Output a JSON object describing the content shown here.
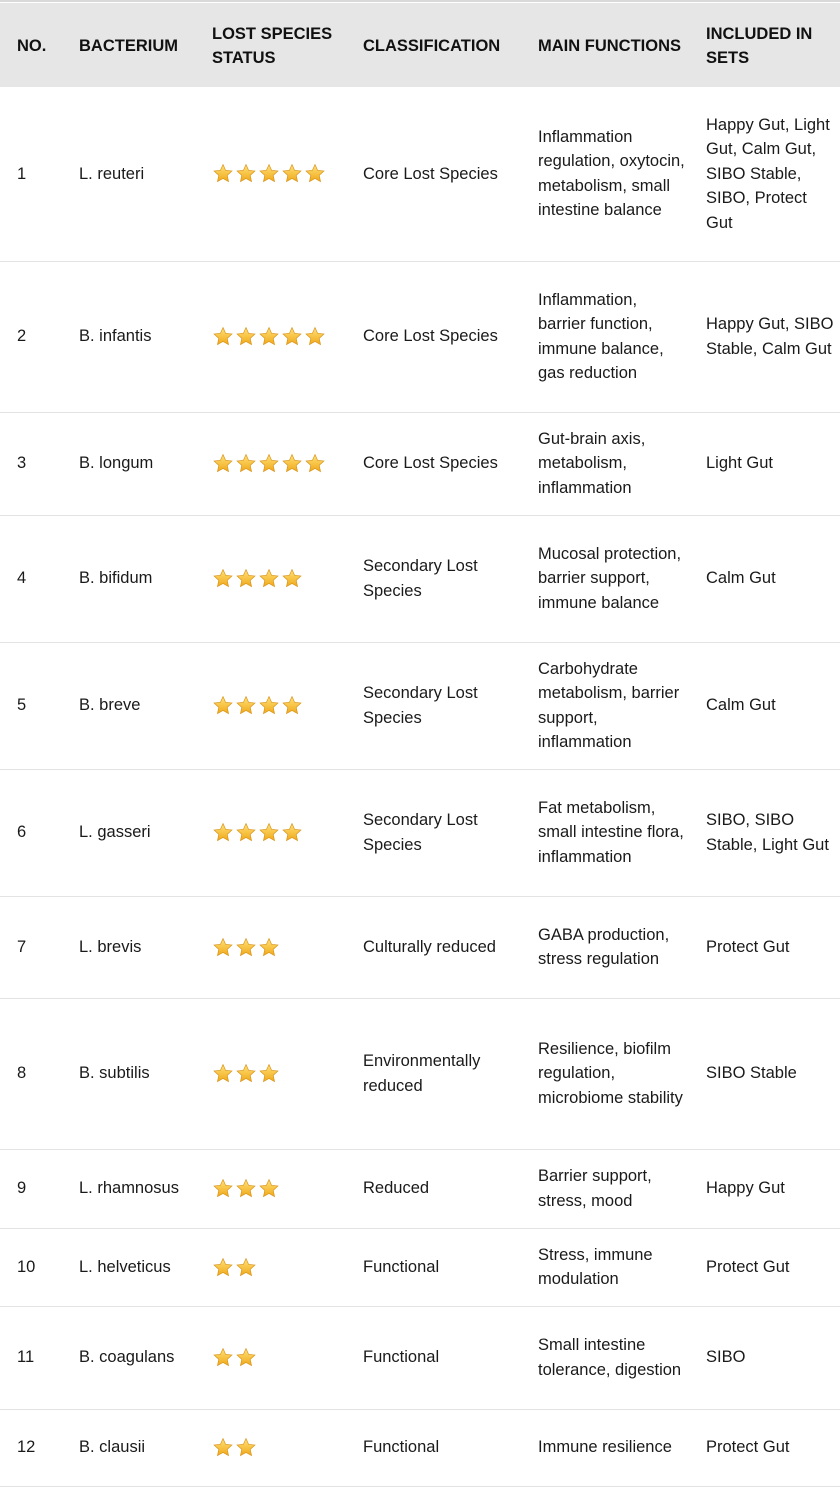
{
  "colors": {
    "header_bg": "#e6e6e6",
    "star": "#f5c02a"
  },
  "columns": [
    "NO.",
    "BACTERIUM",
    "LOST SPECIES STATUS",
    "CLASSIFICATION",
    "MAIN FUNCTIONS",
    "INCLUDED IN SETS"
  ],
  "rows": [
    {
      "no": "1",
      "bacterium": "L. reuteri",
      "stars": 5,
      "classification": "Core Lost Species",
      "functions": "Inflammation regulation, oxytocin, metabolism, small intestine balance",
      "sets": "Happy Gut, Light Gut, Calm Gut, SIBO Stable, SIBO, Protect Gut"
    },
    {
      "no": "2",
      "bacterium": "B. infantis",
      "stars": 5,
      "classification": "Core Lost Species",
      "functions": "Inflammation, barrier function, immune balance, gas reduction",
      "sets": "Happy Gut, SIBO Stable, Calm Gut"
    },
    {
      "no": "3",
      "bacterium": "B. longum",
      "stars": 5,
      "classification": "Core Lost Species",
      "functions": "Gut-brain axis, metabolism, inflammation",
      "sets": "Light Gut"
    },
    {
      "no": "4",
      "bacterium": "B. bifidum",
      "stars": 4,
      "classification": "Secondary Lost Species",
      "functions": "Mucosal protection, barrier support, immune balance",
      "sets": "Calm Gut"
    },
    {
      "no": "5",
      "bacterium": "B. breve",
      "stars": 4,
      "classification": "Secondary Lost Species",
      "functions": "Carbohydrate metabolism, barrier support, inflammation",
      "sets": "Calm Gut"
    },
    {
      "no": "6",
      "bacterium": "L. gasseri",
      "stars": 4,
      "classification": "Secondary Lost Species",
      "functions": "Fat metabolism, small intestine flora, inflammation",
      "sets": "SIBO, SIBO Stable, Light Gut"
    },
    {
      "no": "7",
      "bacterium": "L. brevis",
      "stars": 3,
      "classification": "Culturally reduced",
      "functions": "GABA production, stress regulation",
      "sets": "Protect Gut"
    },
    {
      "no": "8",
      "bacterium": "B. subtilis",
      "stars": 3,
      "classification": "Environmentally reduced",
      "functions": "Resilience, biofilm regulation, microbiome stability",
      "sets": "SIBO Stable"
    },
    {
      "no": "9",
      "bacterium": "L. rhamnosus",
      "stars": 3,
      "classification": "Reduced",
      "functions": "Barrier support, stress, mood",
      "sets": "Happy Gut"
    },
    {
      "no": "10",
      "bacterium": "L. helveticus",
      "stars": 2,
      "classification": "Functional",
      "functions": "Stress, immune modulation",
      "sets": "Protect Gut"
    },
    {
      "no": "11",
      "bacterium": "B. coagulans",
      "stars": 2,
      "classification": "Functional",
      "functions": "Small intestine tolerance, digestion",
      "sets": "SIBO"
    },
    {
      "no": "12",
      "bacterium": "B. clausii",
      "stars": 2,
      "classification": "Functional",
      "functions": "Immune resilience",
      "sets": "Protect Gut"
    }
  ]
}
